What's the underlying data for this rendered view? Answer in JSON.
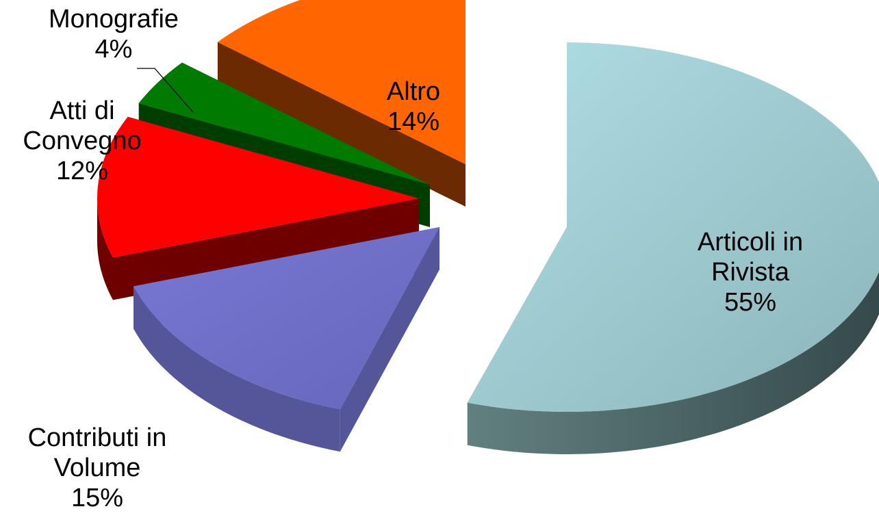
{
  "chart_data": {
    "type": "pie",
    "title": "",
    "slices": [
      {
        "label": "Articoli in Rivista",
        "value": 55,
        "value_text": "55%",
        "color": "#9CCDD6",
        "side_color": "#4E6A6C"
      },
      {
        "label": "Contributi in Volume",
        "value": 15,
        "value_text": "15%",
        "color": "#7474CC",
        "side_color": "#55559A"
      },
      {
        "label": "Atti di Convegno",
        "value": 12,
        "value_text": "12%",
        "color": "#FF0000",
        "side_color": "#6E0000"
      },
      {
        "label": "Monografie",
        "value": 4,
        "value_text": "4%",
        "color": "#007A00",
        "side_color": "#003D00"
      },
      {
        "label": "Altro",
        "value": 14,
        "value_text": "14%",
        "color": "#FF6600",
        "side_color": "#6B2A00"
      }
    ],
    "label_lines": {
      "articoli": [
        "Articoli in",
        "Rivista",
        "55%"
      ],
      "contributi": [
        "Contributi in",
        "Volume",
        "15%"
      ],
      "atti": [
        "Atti di",
        "Convegno",
        "12%"
      ],
      "monografie": [
        "Monografie",
        "4%"
      ],
      "altro": [
        "Altro",
        "14%"
      ]
    },
    "style": "3d-exploded",
    "legend": "none"
  }
}
